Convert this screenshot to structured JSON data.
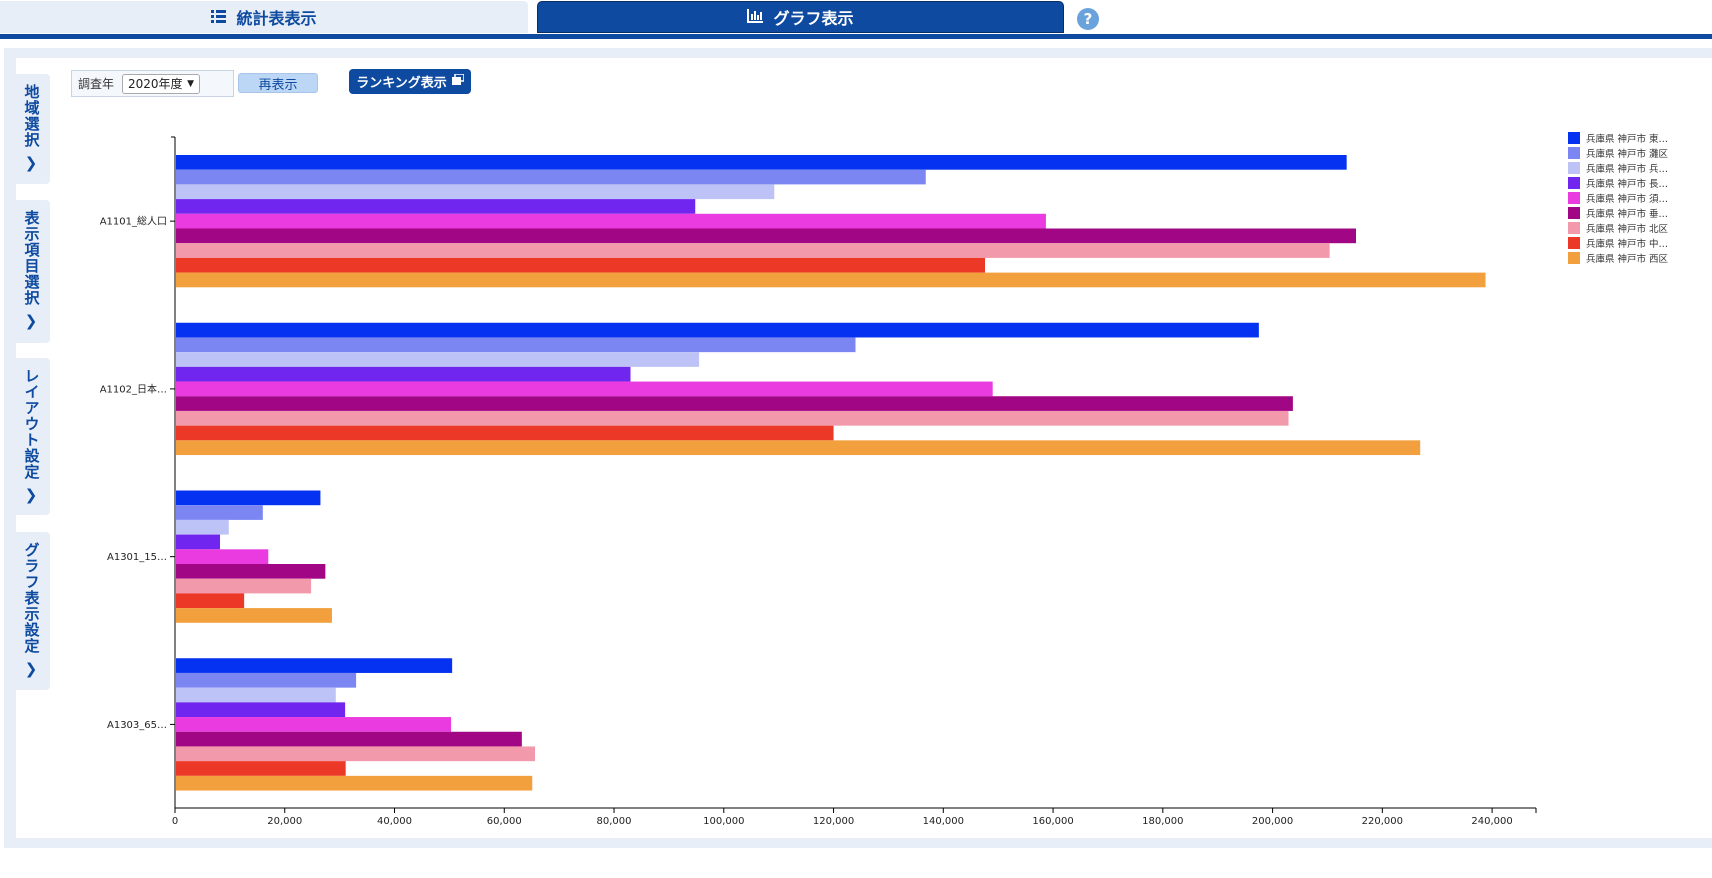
{
  "tabs": {
    "table_label": "統計表表示",
    "graph_label": "グラフ表示",
    "help": "?"
  },
  "side_tabs": [
    {
      "label": "地域選択"
    },
    {
      "label": "表示項目選択"
    },
    {
      "label": "レイアウト設定"
    },
    {
      "label": "グラフ表示設定"
    }
  ],
  "controls": {
    "year_label": "調査年",
    "year_value": "2020年度",
    "redisplay_label": "再表示",
    "ranking_label": "ランキング表示"
  },
  "colors": {
    "brand": "#0d4aa0"
  },
  "chart_data": {
    "type": "bar",
    "orientation": "horizontal",
    "categories": [
      "A1101_総人口",
      "A1102_日本…",
      "A1301_15…",
      "A1303_65…"
    ],
    "series": [
      {
        "name": "兵庫県 神戸市 東…",
        "color": "#0532f0",
        "values": [
          213500,
          197500,
          26500,
          50500
        ]
      },
      {
        "name": "兵庫県 神戸市 灘区",
        "color": "#7b86f2",
        "values": [
          136800,
          124000,
          16000,
          33000
        ]
      },
      {
        "name": "兵庫県 神戸市 兵…",
        "color": "#bdc3f7",
        "values": [
          109200,
          95500,
          9800,
          29300
        ]
      },
      {
        "name": "兵庫県 神戸市 長…",
        "color": "#7126ef",
        "values": [
          94800,
          83000,
          8200,
          31000
        ]
      },
      {
        "name": "兵庫県 神戸市 須…",
        "color": "#ea3be0",
        "values": [
          158700,
          149000,
          17000,
          50300
        ]
      },
      {
        "name": "兵庫県 神戸市 垂…",
        "color": "#a10684",
        "values": [
          215200,
          203700,
          27400,
          63200
        ]
      },
      {
        "name": "兵庫県 神戸市 北区",
        "color": "#f29aab",
        "values": [
          210400,
          202900,
          24800,
          65600
        ]
      },
      {
        "name": "兵庫県 神戸市 中…",
        "color": "#ec3826",
        "values": [
          147600,
          120000,
          12600,
          31100
        ]
      },
      {
        "name": "兵庫県 神戸市 西区",
        "color": "#f2a03d",
        "values": [
          238800,
          226900,
          28600,
          65100
        ]
      }
    ],
    "xlim": [
      0,
      248000
    ],
    "xticks": [
      0,
      20000,
      40000,
      60000,
      80000,
      100000,
      120000,
      140000,
      160000,
      180000,
      200000,
      220000,
      240000
    ],
    "xtick_labels": [
      "0",
      "20,000",
      "40,000",
      "60,000",
      "80,000",
      "100,000",
      "120,000",
      "140,000",
      "160,000",
      "180,000",
      "200,000",
      "220,000",
      "240,000"
    ],
    "grid": false,
    "legend_position": "top-right"
  }
}
